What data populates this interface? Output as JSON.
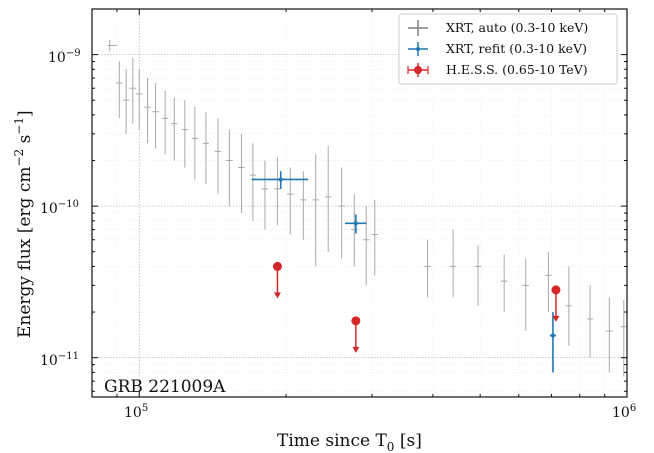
{
  "chart_data": {
    "type": "scatter",
    "x_scale": "log",
    "y_scale": "log",
    "xlim": [
      80000,
      1000000
    ],
    "ylim": [
      5.5e-12,
      2e-09
    ],
    "x_ticks": [
      {
        "value": 100000,
        "base": "10",
        "exp": "5"
      },
      {
        "value": 1000000,
        "base": "10",
        "exp": "6"
      }
    ],
    "y_ticks": [
      {
        "value": 1e-11,
        "base": "10",
        "exp": "−11"
      },
      {
        "value": 1e-10,
        "base": "10",
        "exp": "−10"
      },
      {
        "value": 1e-09,
        "base": "10",
        "exp": "−9"
      }
    ],
    "xlabel": {
      "main": "Time since T",
      "sub": "0",
      "tail": " [s]"
    },
    "ylabel": {
      "a": "Energy flux [erg cm",
      "b": "−2",
      "c": " s",
      "d": "−1",
      "e": "]"
    },
    "grid": true,
    "legend_position": "top-right",
    "annotation": "GRB 221009A",
    "legend": [
      {
        "label": "XRT, auto (0.3-10 keV)",
        "color": "#808080",
        "marker": "plus"
      },
      {
        "label": "XRT, refit (0.3-10 keV)",
        "color": "#1f77b4",
        "marker": "dot"
      },
      {
        "label": "H.E.S.S. (0.65-10 TeV)",
        "color": "#d62728",
        "marker": "circle"
      }
    ],
    "series": [
      {
        "name": "XRT, auto (0.3-10 keV)",
        "color": "#a8a8a8",
        "points": [
          {
            "x": 87000,
            "y": 1.15e-09,
            "xlo": 86000,
            "xhi": 90000,
            "ylo": 1.05e-09,
            "yhi": 1.25e-09
          },
          {
            "x": 91000,
            "y": 6.5e-10,
            "ylo": 3.8e-10,
            "yhi": 9e-10
          },
          {
            "x": 94000,
            "y": 5e-10,
            "ylo": 3e-10,
            "yhi": 8e-10
          },
          {
            "x": 97000,
            "y": 6e-10,
            "ylo": 3.5e-10,
            "yhi": 9.5e-10
          },
          {
            "x": 100000,
            "y": 5.5e-10,
            "ylo": 3.2e-10,
            "yhi": 8e-10
          },
          {
            "x": 104000,
            "y": 4.5e-10,
            "ylo": 2.6e-10,
            "yhi": 7e-10
          },
          {
            "x": 108000,
            "y": 4.2e-10,
            "ylo": 2.4e-10,
            "yhi": 6.5e-10
          },
          {
            "x": 113000,
            "y": 3.8e-10,
            "ylo": 2.2e-10,
            "yhi": 5.8e-10
          },
          {
            "x": 118000,
            "y": 3.5e-10,
            "ylo": 2e-10,
            "yhi": 5.2e-10
          },
          {
            "x": 124000,
            "y": 3.2e-10,
            "ylo": 1.8e-10,
            "yhi": 5e-10
          },
          {
            "x": 130000,
            "y": 2.8e-10,
            "ylo": 1.5e-10,
            "yhi": 4.5e-10
          },
          {
            "x": 137000,
            "y": 2.6e-10,
            "ylo": 1.4e-10,
            "yhi": 4.2e-10
          },
          {
            "x": 145000,
            "y": 2.3e-10,
            "ylo": 1.2e-10,
            "yhi": 3.8e-10
          },
          {
            "x": 153000,
            "y": 2e-10,
            "ylo": 1e-10,
            "yhi": 3.2e-10
          },
          {
            "x": 162000,
            "y": 1.8e-10,
            "ylo": 9e-11,
            "yhi": 3e-10
          },
          {
            "x": 171000,
            "y": 1.6e-10,
            "ylo": 8e-11,
            "yhi": 2.6e-10
          },
          {
            "x": 181000,
            "y": 1.3e-10,
            "ylo": 7e-11,
            "yhi": 2e-10
          },
          {
            "x": 192000,
            "y": 1.3e-10,
            "ylo": 7.5e-11,
            "yhi": 2.1e-10
          },
          {
            "x": 204000,
            "y": 1.2e-10,
            "ylo": 6.5e-11,
            "yhi": 1.8e-10
          },
          {
            "x": 217000,
            "y": 1.1e-10,
            "ylo": 6e-11,
            "yhi": 1.7e-10
          },
          {
            "x": 230000,
            "y": 1.1e-10,
            "ylo": 4e-11,
            "yhi": 2.2e-10
          },
          {
            "x": 244000,
            "y": 1.15e-10,
            "ylo": 5e-11,
            "yhi": 2.5e-10
          },
          {
            "x": 260000,
            "y": 1e-10,
            "ylo": 4.5e-11,
            "yhi": 1.8e-10
          },
          {
            "x": 276000,
            "y": 7e-11,
            "ylo": 4e-11,
            "yhi": 1.2e-10
          },
          {
            "x": 292000,
            "y": 6e-11,
            "ylo": 3e-11,
            "yhi": 1e-10
          },
          {
            "x": 304000,
            "y": 6.5e-11,
            "ylo": 3.5e-11,
            "yhi": 1.1e-10
          },
          {
            "x": 390000,
            "y": 4e-11,
            "ylo": 2.5e-11,
            "yhi": 6e-11
          },
          {
            "x": 440000,
            "y": 4e-11,
            "ylo": 2.5e-11,
            "yhi": 7e-11
          },
          {
            "x": 495000,
            "y": 4e-11,
            "ylo": 2.2e-11,
            "yhi": 5.5e-11
          },
          {
            "x": 560000,
            "y": 3.2e-11,
            "ylo": 2e-11,
            "yhi": 4.8e-11
          },
          {
            "x": 620000,
            "y": 3e-11,
            "ylo": 1.5e-11,
            "yhi": 4.5e-11
          },
          {
            "x": 690000,
            "y": 3.5e-11,
            "ylo": 2e-11,
            "yhi": 5e-11
          },
          {
            "x": 760000,
            "y": 2.2e-11,
            "ylo": 1.2e-11,
            "yhi": 4e-11
          },
          {
            "x": 840000,
            "y": 1.8e-11,
            "ylo": 1e-11,
            "yhi": 3e-11
          },
          {
            "x": 920000,
            "y": 1.5e-11,
            "ylo": 8e-12,
            "yhi": 2.5e-11
          },
          {
            "x": 985000,
            "y": 1.6e-11,
            "ylo": 7.5e-12,
            "yhi": 2.4e-11
          }
        ]
      },
      {
        "name": "XRT, refit (0.3-10 keV)",
        "color": "#1f77b4",
        "points": [
          {
            "x": 195000,
            "y": 1.5e-10,
            "xlo": 170000,
            "xhi": 222000,
            "ylo": 1.3e-10,
            "yhi": 1.7e-10
          },
          {
            "x": 278000,
            "y": 7.7e-11,
            "xlo": 264000,
            "xhi": 292000,
            "ylo": 6.6e-11,
            "yhi": 8.8e-11
          },
          {
            "x": 705000,
            "y": 1.4e-11,
            "xlo": 695000,
            "xhi": 715000,
            "ylo": 8e-12,
            "yhi": 2e-11
          }
        ]
      },
      {
        "name": "H.E.S.S. (0.65-10 TeV)",
        "color": "#d62728",
        "points": [
          {
            "x": 192000,
            "y": 4e-11,
            "upper_limit": true
          },
          {
            "x": 278000,
            "y": 1.75e-11,
            "upper_limit": true
          },
          {
            "x": 715000,
            "y": 2.8e-11,
            "upper_limit": true
          }
        ]
      }
    ]
  }
}
